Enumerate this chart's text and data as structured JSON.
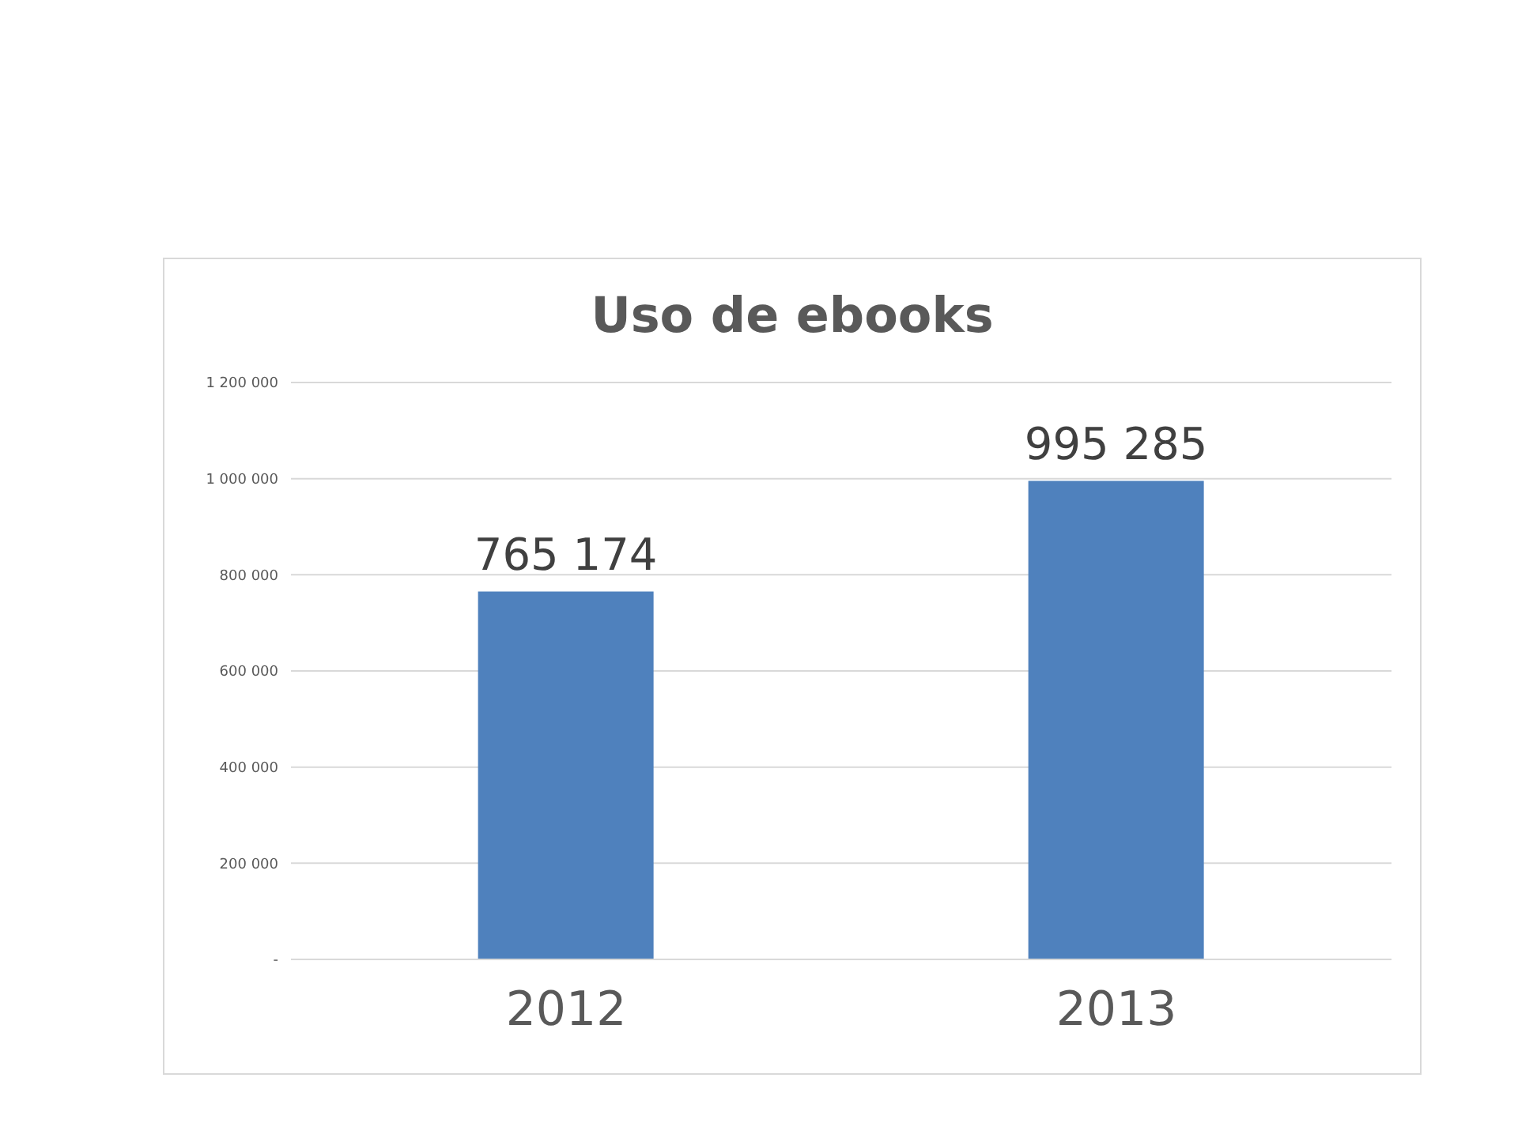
{
  "chart_data": {
    "type": "bar",
    "title": "Uso de ebooks",
    "categories": [
      "2012",
      "2013"
    ],
    "values": [
      765174,
      995285
    ],
    "value_labels": [
      "765 174",
      "995 285"
    ],
    "color": "#4f81bd",
    "ylim": [
      0,
      1200000
    ],
    "yticks": [
      {
        "value": 0,
        "label": "-"
      },
      {
        "value": 200000,
        "label": "200 000"
      },
      {
        "value": 400000,
        "label": "400 000"
      },
      {
        "value": 600000,
        "label": "600 000"
      },
      {
        "value": 800000,
        "label": "800 000"
      },
      {
        "value": 1000000,
        "label": "1 000 000"
      },
      {
        "value": 1200000,
        "label": "1 200 000"
      }
    ],
    "grid": "y"
  }
}
